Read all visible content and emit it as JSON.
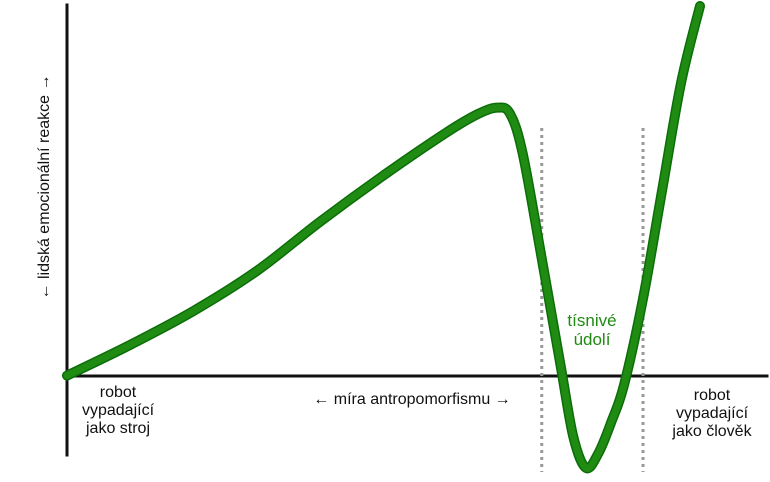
{
  "chart_data": {
    "type": "line",
    "title": "",
    "xlabel": "← míra antropomorfismu →",
    "ylabel": "← lidská emocionální reakce →",
    "category_labels": {
      "left": [
        "robot",
        "vypadající",
        "jako stroj"
      ],
      "right": [
        "robot",
        "vypadající",
        "jako člověk"
      ]
    },
    "valley_label": [
      "tísnivé",
      "údolí"
    ],
    "xlim": [
      0,
      100
    ],
    "ylim": [
      -30,
      120
    ],
    "grid": false,
    "valley_boundaries": [
      75,
      91
    ],
    "series": [
      {
        "points": [
          [
            0,
            0
          ],
          [
            10,
            10
          ],
          [
            20,
            21
          ],
          [
            30,
            34
          ],
          [
            40,
            50
          ],
          [
            50,
            65
          ],
          [
            60,
            79
          ],
          [
            65,
            85
          ],
          [
            68,
            87
          ],
          [
            70,
            85
          ],
          [
            72,
            72
          ],
          [
            75,
            38
          ],
          [
            78,
            3
          ],
          [
            80,
            -20
          ],
          [
            82,
            -30
          ],
          [
            84,
            -25
          ],
          [
            86,
            -15
          ],
          [
            88,
            -3
          ],
          [
            91,
            25
          ],
          [
            94,
            60
          ],
          [
            97,
            95
          ],
          [
            100,
            120
          ]
        ]
      }
    ],
    "colors": {
      "curve": "#1f8b12",
      "curve_dark": "#0b6d08",
      "axis": "#111111",
      "boundary": "#999999",
      "valley_label": "#1f8b12"
    }
  }
}
